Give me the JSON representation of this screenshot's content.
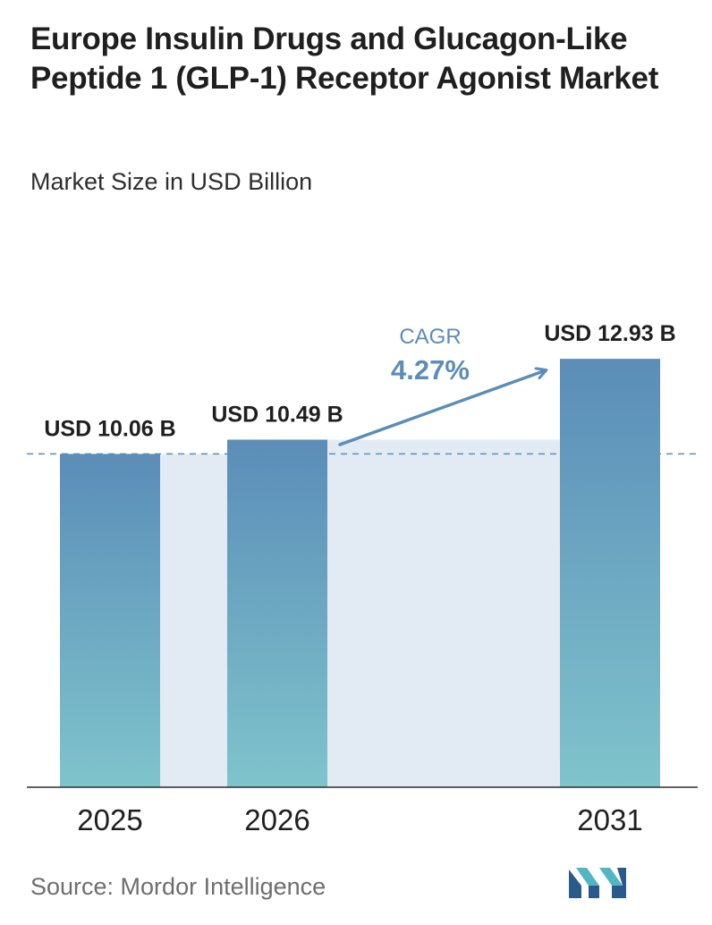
{
  "header": {
    "title": "Europe Insulin Drugs and Glucagon-Like Peptide 1 (GLP-1) Receptor Agonist Market",
    "subtitle": "Market Size in USD Billion"
  },
  "chart_data": {
    "type": "bar",
    "title": "Europe Insulin Drugs and Glucagon-Like Peptide 1 (GLP-1) Receptor Agonist Market",
    "subtitle": "Market Size in USD Billion",
    "categories": [
      "2025",
      "2026",
      "2031"
    ],
    "values": [
      10.06,
      10.49,
      12.93
    ],
    "value_labels": [
      "USD 10.06 B",
      "USD 10.49 B",
      "USD 12.93 B"
    ],
    "ylim": [
      0,
      13.5
    ],
    "cagr": {
      "label": "CAGR",
      "value": "4.27%"
    },
    "grid": false,
    "colors": {
      "bar_top": "#5b8db8",
      "bar_bottom": "#7fc4cc",
      "band": "#e2ebf3",
      "arrow": "#5b8db8",
      "dashed": "#5b8db8"
    }
  },
  "footer": {
    "source": "Source:  Mordor Intelligence"
  },
  "logo": {
    "icon": "mordor-intelligence-logo-icon",
    "colors": [
      "#2a5a8a",
      "#4fb6c2"
    ]
  }
}
